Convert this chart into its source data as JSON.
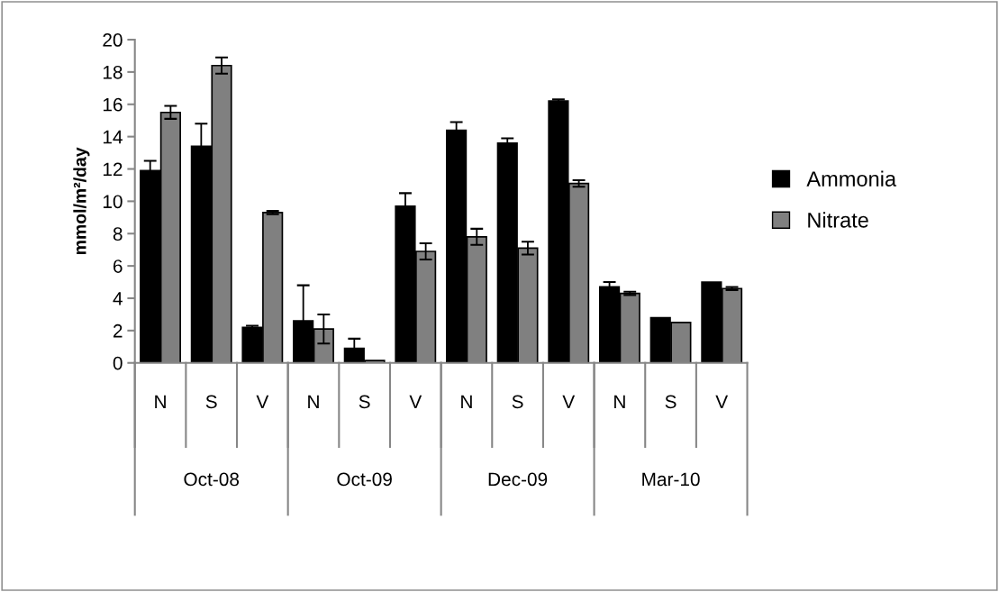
{
  "chart_data": {
    "type": "bar",
    "ylabel": "mmol/m²/day",
    "categories": [
      "N",
      "S",
      "V",
      "N",
      "S",
      "V",
      "N",
      "S",
      "V",
      "N",
      "S",
      "V"
    ],
    "series": [
      {
        "name": "Ammonia",
        "color": "#000000",
        "values": [
          11.9,
          13.4,
          2.2,
          2.6,
          0.9,
          9.7,
          14.4,
          13.6,
          16.2,
          4.7,
          2.8,
          5.0
        ],
        "errors": [
          0.6,
          1.4,
          0.1,
          2.2,
          0.6,
          0.8,
          0.5,
          0.3,
          0.1,
          0.3,
          null,
          null
        ]
      },
      {
        "name": "Nitrate",
        "color": "#808080",
        "values": [
          15.5,
          18.4,
          9.3,
          2.1,
          0.15,
          6.9,
          7.8,
          7.1,
          11.1,
          4.3,
          2.5,
          4.6
        ],
        "errors": [
          0.4,
          0.5,
          0.1,
          0.9,
          null,
          0.5,
          0.5,
          0.4,
          0.2,
          0.1,
          null,
          0.1
        ]
      }
    ],
    "annotations": [
      "Oct-08",
      "Oct-09",
      "Dec-09",
      "Mar-10"
    ],
    "ylim": [
      0,
      20
    ],
    "yticks": [
      0,
      2,
      4,
      6,
      8,
      10,
      12,
      14,
      16,
      18,
      20
    ],
    "grid": false,
    "legend": "right"
  }
}
